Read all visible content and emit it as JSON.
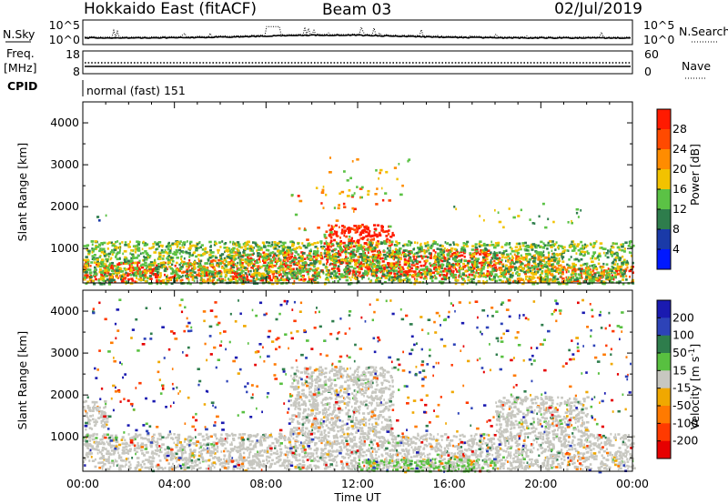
{
  "header": {
    "station": "Hokkaido East (fitACF)",
    "beam": "Beam 03",
    "date": "02/Jul/2019"
  },
  "small_panels": {
    "nsky": {
      "label": "N.Sky",
      "left_ticks": [
        "10^5",
        "10^0"
      ],
      "right_label": "N.Search",
      "right_ticks": [
        "10^5",
        "10^0"
      ]
    },
    "freq": {
      "label_line1": "Freq.",
      "label_line2": "[MHz]",
      "left_ticks": [
        "18",
        "8"
      ],
      "right_label": "Nave",
      "right_ticks": [
        "60",
        "0"
      ]
    },
    "cpid": {
      "label": "CPID",
      "program": "normal (fast) 151"
    }
  },
  "time_axis": {
    "label": "Time UT",
    "ticks": [
      "00:00",
      "04:00",
      "08:00",
      "12:00",
      "16:00",
      "20:00",
      "00:00"
    ]
  },
  "colors": {
    "power_scale": [
      "#0018ff",
      "#1a3aa8",
      "#2e7d4c",
      "#5bc245",
      "#f2c200",
      "#ff8c00",
      "#ff4a00",
      "#ff1a00"
    ],
    "velocity_scale": [
      "#1a1ab0",
      "#2d43b8",
      "#2e7d4c",
      "#58c040",
      "#c7c7c0",
      "#f0a800",
      "#ff7a00",
      "#ff3a00",
      "#e60000"
    ],
    "ground_scatter": "#c7c7c0"
  },
  "chart_data": [
    {
      "type": "heatmap",
      "name": "power",
      "ylabel": "Slant Range [km]",
      "xlabel": "",
      "xlim": [
        0,
        24
      ],
      "ylim": [
        180,
        4500
      ],
      "yticks": [
        "1000",
        "2000",
        "3000",
        "4000"
      ],
      "colorbar": {
        "label": "Power [dB]",
        "ticks": [
          "4",
          "8",
          "12",
          "16",
          "20",
          "24",
          "28"
        ]
      },
      "regions": [
        {
          "t0": 0.0,
          "t1": 4.2,
          "r0": 230,
          "r1": 700,
          "level": 7
        },
        {
          "t0": 4.2,
          "t1": 6.5,
          "r0": 230,
          "r1": 750,
          "level": 6
        },
        {
          "t0": 6.5,
          "t1": 10.5,
          "r0": 250,
          "r1": 950,
          "level": 7
        },
        {
          "t0": 10.5,
          "t1": 13.5,
          "r0": 350,
          "r1": 1600,
          "level": 7
        },
        {
          "t0": 13.5,
          "t1": 18.2,
          "r0": 300,
          "r1": 1000,
          "level": 7
        },
        {
          "t0": 18.2,
          "t1": 20.8,
          "r0": 230,
          "r1": 900,
          "level": 5
        },
        {
          "t0": 20.8,
          "t1": 24.0,
          "r0": 230,
          "r1": 600,
          "level": 6
        },
        {
          "t0": 0.0,
          "t1": 24.0,
          "r0": 180,
          "r1": 1200,
          "level": 3
        },
        {
          "t0": 9.0,
          "t1": 13.5,
          "r0": 1200,
          "r1": 2500,
          "level": 6
        },
        {
          "t0": 10.0,
          "t1": 14.5,
          "r0": 2300,
          "r1": 3200,
          "level": 4
        },
        {
          "t0": 16.0,
          "t1": 22.0,
          "r0": 1500,
          "r1": 2100,
          "level": 3
        },
        {
          "t0": 0.0,
          "t1": 1.0,
          "r0": 1500,
          "r1": 1900,
          "level": 2
        }
      ]
    },
    {
      "type": "heatmap",
      "name": "velocity",
      "ylabel": "Slant Range [km]",
      "xlabel": "Time UT",
      "xlim": [
        0,
        24
      ],
      "ylim": [
        180,
        4500
      ],
      "yticks": [
        "1000",
        "2000",
        "3000",
        "4000"
      ],
      "colorbar": {
        "label": "Velocity [m s^-1]",
        "ticks": [
          "200",
          "100",
          "50",
          "15",
          "-15",
          "-50",
          "-100",
          "-200"
        ]
      },
      "regions": [
        {
          "t0": 0.0,
          "t1": 24.0,
          "r0": 250,
          "r1": 1100,
          "level": 4
        },
        {
          "t0": 0.0,
          "t1": 1.0,
          "r0": 1200,
          "r1": 1900,
          "level": 4
        },
        {
          "t0": 9.0,
          "t1": 13.5,
          "r0": 1100,
          "r1": 2700,
          "level": 4
        },
        {
          "t0": 18.0,
          "t1": 22.0,
          "r0": 1100,
          "r1": 2000,
          "level": 4
        },
        {
          "t0": 12.0,
          "t1": 18.0,
          "r0": 200,
          "r1": 500,
          "level": 3
        },
        {
          "t0": 0.0,
          "t1": 24.0,
          "r0": 180,
          "r1": 4300,
          "level": 5
        }
      ]
    }
  ]
}
